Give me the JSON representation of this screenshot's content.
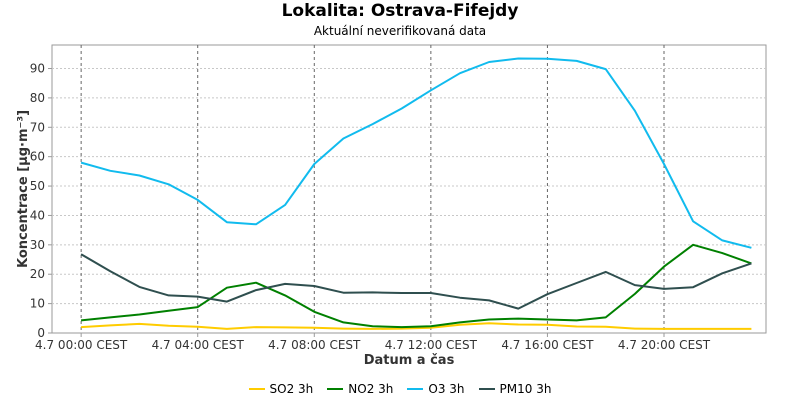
{
  "header": {
    "title": "Lokalita: Ostrava-Fifejdy",
    "subtitle": "Aktuální neverifikovaná data"
  },
  "chart_data": {
    "type": "line",
    "title": "Lokalita: Ostrava-Fifejdy",
    "subtitle": "Aktuální neverifikovaná data",
    "xlabel": "Datum a čas",
    "ylabel": "Koncentrace [µg·m⁻³]",
    "x_tick_labels": [
      "4.7 00:00 CEST",
      "4.7 04:00 CEST",
      "4.7 08:00 CEST",
      "4.7 12:00 CEST",
      "4.7 16:00 CEST",
      "4.7 20:00 CEST"
    ],
    "x_tick_hours": [
      0,
      4,
      8,
      12,
      16,
      20
    ],
    "xlim_hours": [
      -1,
      23.5
    ],
    "y_ticks": [
      0,
      10,
      20,
      30,
      40,
      50,
      60,
      70,
      80,
      90
    ],
    "ylim": [
      0,
      98
    ],
    "grid": true,
    "legend_position": "bottom",
    "x_hours": [
      0,
      1,
      2,
      3,
      4,
      5,
      6,
      7,
      8,
      9,
      10,
      11,
      12,
      13,
      14,
      15,
      16,
      17,
      18,
      19,
      20,
      21,
      22,
      23
    ],
    "series": [
      {
        "name": "SO2 3h",
        "color": "#ffcc00",
        "values": [
          2.0,
          2.6,
          3.1,
          2.5,
          2.1,
          1.4,
          2.0,
          1.9,
          1.8,
          1.5,
          1.4,
          1.5,
          1.8,
          2.8,
          3.3,
          2.9,
          2.8,
          2.2,
          2.1,
          1.5,
          1.4,
          1.4,
          1.4,
          1.4
        ]
      },
      {
        "name": "NO2 3h",
        "color": "#008000",
        "values": [
          4.3,
          5.3,
          6.3,
          7.6,
          8.8,
          15.4,
          17.1,
          12.8,
          7.2,
          3.6,
          2.3,
          2.0,
          2.3,
          3.6,
          4.6,
          4.9,
          4.6,
          4.3,
          5.3,
          13.3,
          22.6,
          30.0,
          27.2,
          23.7
        ]
      },
      {
        "name": "O3 3h",
        "color": "#11bbee",
        "values": [
          58.0,
          55.2,
          53.6,
          50.6,
          45.3,
          37.7,
          37.0,
          43.6,
          57.5,
          66.2,
          71.1,
          76.4,
          82.6,
          88.4,
          92.2,
          93.4,
          93.3,
          92.6,
          89.8,
          75.6,
          57.5,
          38.0,
          31.5,
          29.0
        ]
      },
      {
        "name": "PM10 3h",
        "color": "#2f4f4f",
        "values": [
          26.8,
          21.0,
          15.7,
          12.8,
          12.4,
          10.7,
          14.6,
          16.7,
          16.0,
          13.7,
          13.8,
          13.6,
          13.6,
          12.0,
          11.1,
          8.3,
          13.2,
          17.0,
          20.8,
          16.3,
          15.0,
          15.6,
          20.3,
          23.7
        ]
      }
    ]
  }
}
